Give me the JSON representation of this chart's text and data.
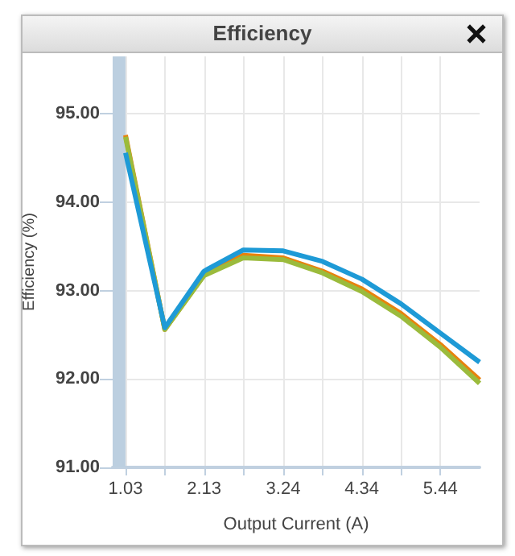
{
  "chart_data": {
    "type": "line",
    "title": "Efficiency",
    "xlabel": "Output Current (A)",
    "ylabel": "Efficiency (%)",
    "x": [
      1.03,
      1.58,
      2.13,
      2.68,
      3.24,
      3.79,
      4.34,
      4.89,
      5.44,
      5.99
    ],
    "series": [
      {
        "color": "#e8820c",
        "values": [
          94.76,
          92.56,
          93.18,
          93.4,
          93.37,
          93.22,
          93.02,
          92.74,
          92.39,
          91.99
        ]
      },
      {
        "color": "#9bbb3c",
        "values": [
          94.74,
          92.56,
          93.17,
          93.37,
          93.35,
          93.2,
          92.99,
          92.71,
          92.36,
          91.95
        ]
      },
      {
        "color": "#1e9ad6",
        "values": [
          94.56,
          92.58,
          93.22,
          93.46,
          93.45,
          93.33,
          93.13,
          92.85,
          92.52,
          92.19
        ]
      }
    ],
    "xlim": [
      0.85,
      5.99
    ],
    "xticks": [
      1.03,
      {
        "value": 1.58,
        "label": null
      },
      2.13,
      {
        "value": 2.68,
        "label": null
      },
      3.24,
      {
        "value": 3.79,
        "label": null
      },
      4.34,
      {
        "value": 4.89,
        "label": null
      },
      5.44
    ],
    "ylim": [
      91,
      95.65
    ],
    "yticks": [
      {
        "value": 91,
        "label": "91.00"
      },
      {
        "value": 92,
        "label": "92.00"
      },
      {
        "value": 93,
        "label": "93.00"
      },
      {
        "value": 94,
        "label": "94.00"
      },
      {
        "value": 95,
        "label": "95.00"
      }
    ],
    "bands": [
      {
        "axis": "x",
        "from": 0.85,
        "to": 1.03,
        "color": "#bccfe0"
      }
    ],
    "grid": true,
    "line_style": "solid"
  }
}
